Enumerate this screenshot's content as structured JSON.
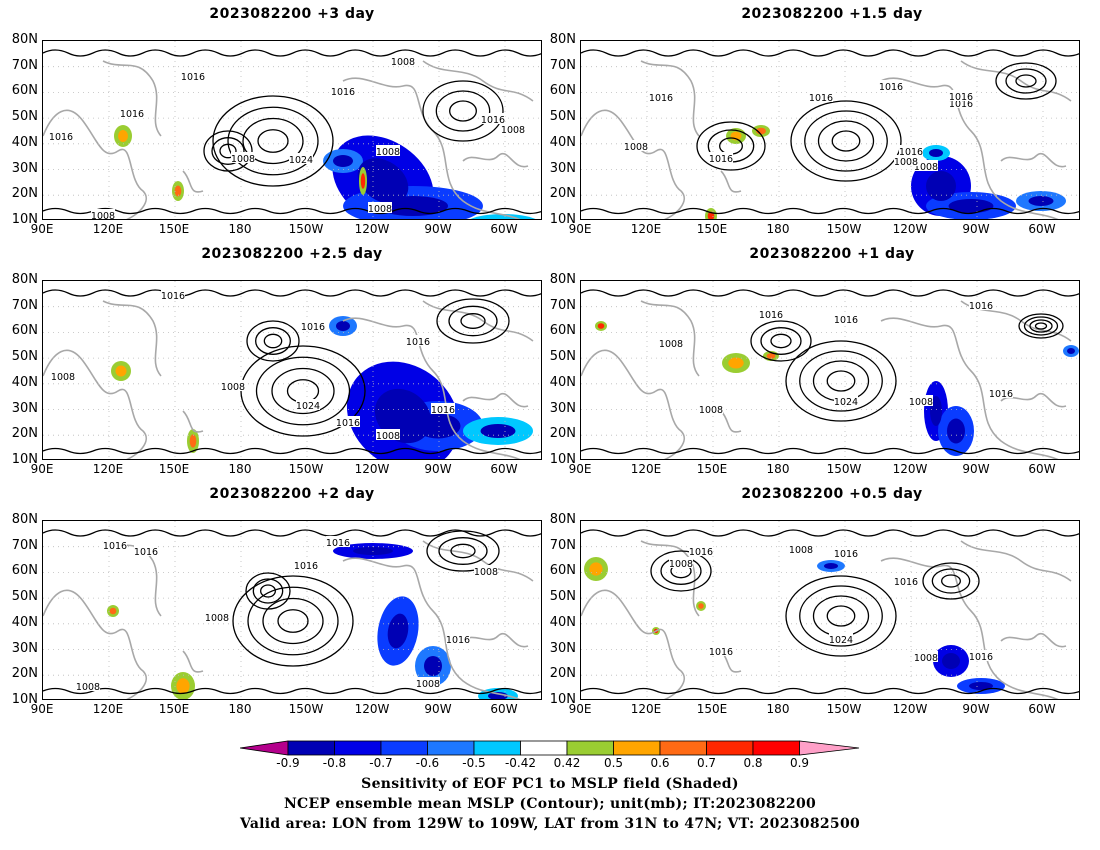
{
  "panels": [
    {
      "id": "p1",
      "title": "2023082200  +3 day"
    },
    {
      "id": "p2",
      "title": "2023082200  +1.5 day"
    },
    {
      "id": "p3",
      "title": "2023082200  +2.5 day"
    },
    {
      "id": "p4",
      "title": "2023082200  +1 day"
    },
    {
      "id": "p5",
      "title": "2023082200  +2 day"
    },
    {
      "id": "p6",
      "title": "2023082200  +0.5 day"
    }
  ],
  "lat_labels": [
    "80N",
    "70N",
    "60N",
    "50N",
    "40N",
    "30N",
    "20N",
    "10N"
  ],
  "lon_labels": [
    "90E",
    "120E",
    "150E",
    "180",
    "150W",
    "120W",
    "90W",
    "60W"
  ],
  "contour_labels": {
    "p1": [
      "1016",
      "1016",
      "1016",
      "1008",
      "1008",
      "1008",
      "1024",
      "1016",
      "1008",
      "1008",
      "1016",
      "1008"
    ],
    "p2": [
      "1016",
      "1016",
      "1016",
      "1008",
      "1016",
      "1016",
      "1008",
      "1016",
      "1008",
      "1016"
    ],
    "p3": [
      "1016",
      "1016",
      "1008",
      "1024",
      "1016",
      "1016",
      "1008",
      "1016",
      "1008"
    ],
    "p4": [
      "1016",
      "1016",
      "1008",
      "1016",
      "1024",
      "1008",
      "1016",
      "1008"
    ],
    "p5": [
      "1016",
      "1016",
      "1016",
      "1016",
      "1008",
      "1016",
      "1008",
      "1008",
      "1008"
    ],
    "p6": [
      "1016",
      "1008",
      "1008",
      "1016",
      "1016",
      "1016",
      "1024",
      "1008",
      "1016"
    ]
  },
  "colorbar": {
    "labels": [
      "-0.9",
      "-0.8",
      "-0.7",
      "-0.6",
      "-0.5",
      "-0.42",
      "0.42",
      "0.5",
      "0.6",
      "0.7",
      "0.8",
      "0.9"
    ],
    "colors": {
      "left_arrow": "#b4008c",
      "bins": [
        "#0000b4",
        "#0000e6",
        "#0a3cff",
        "#1e78ff",
        "#00c8ff",
        "#ffffff",
        "#9acd32",
        "#ffa500",
        "#ff6a14",
        "#ff2800",
        "#ff0000"
      ],
      "right_arrow": "#ffa0c8"
    }
  },
  "caption": {
    "line1": "Sensitivity of EOF PC1 to MSLP field (Shaded)",
    "line2": "NCEP ensemble mean MSLP (Contour); unit(mb); IT:2023082200",
    "line3": "Valid area: LON from 129W to 109W, LAT from 31N to 47N; VT: 2023082500"
  }
}
